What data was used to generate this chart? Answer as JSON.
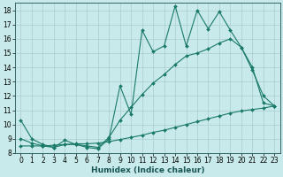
{
  "title": "",
  "xlabel": "Humidex (Indice chaleur)",
  "ylabel": "",
  "bg_color": "#c8eaea",
  "grid_color": "#aacccc",
  "line_color": "#1a7a6a",
  "xlim": [
    -0.5,
    23.5
  ],
  "ylim": [
    8,
    18.5
  ],
  "xticks": [
    0,
    1,
    2,
    3,
    4,
    5,
    6,
    7,
    8,
    9,
    10,
    11,
    12,
    13,
    14,
    15,
    16,
    17,
    18,
    19,
    20,
    21,
    22,
    23
  ],
  "yticks": [
    8,
    9,
    10,
    11,
    12,
    13,
    14,
    15,
    16,
    17,
    18
  ],
  "line1_x": [
    0,
    1,
    2,
    3,
    4,
    5,
    6,
    7,
    8,
    9,
    10,
    11,
    12,
    13,
    14,
    15,
    16,
    17,
    18,
    19,
    20,
    21,
    22,
    23
  ],
  "line1_y": [
    10.3,
    9.0,
    8.6,
    8.4,
    8.9,
    8.6,
    8.4,
    8.3,
    9.0,
    12.7,
    10.7,
    16.6,
    15.1,
    15.5,
    18.3,
    15.5,
    18.0,
    16.7,
    17.9,
    16.6,
    15.4,
    13.8,
    12.0,
    11.3
  ],
  "line2_x": [
    0,
    1,
    2,
    3,
    4,
    5,
    6,
    7,
    8,
    9,
    10,
    11,
    12,
    13,
    14,
    15,
    16,
    17,
    18,
    19,
    20,
    21,
    22,
    23
  ],
  "line2_y": [
    9.0,
    8.7,
    8.5,
    8.4,
    8.6,
    8.6,
    8.5,
    8.4,
    9.1,
    10.3,
    11.2,
    12.1,
    12.9,
    13.5,
    14.2,
    14.8,
    15.0,
    15.3,
    15.7,
    16.0,
    15.4,
    14.0,
    11.5,
    11.3
  ],
  "line3_x": [
    0,
    1,
    2,
    3,
    4,
    5,
    6,
    7,
    8,
    9,
    10,
    11,
    12,
    13,
    14,
    15,
    16,
    17,
    18,
    19,
    20,
    21,
    22,
    23
  ],
  "line3_y": [
    8.5,
    8.5,
    8.5,
    8.55,
    8.6,
    8.65,
    8.65,
    8.7,
    8.8,
    8.95,
    9.1,
    9.25,
    9.45,
    9.6,
    9.8,
    10.0,
    10.2,
    10.4,
    10.6,
    10.8,
    10.95,
    11.05,
    11.15,
    11.3
  ],
  "marker": "D",
  "markersize": 2.0,
  "linewidth": 0.8,
  "tick_fontsize": 5.5,
  "xlabel_fontsize": 6.5,
  "xlabel_fontweight": "bold",
  "xlabel_color": "#1a5555"
}
